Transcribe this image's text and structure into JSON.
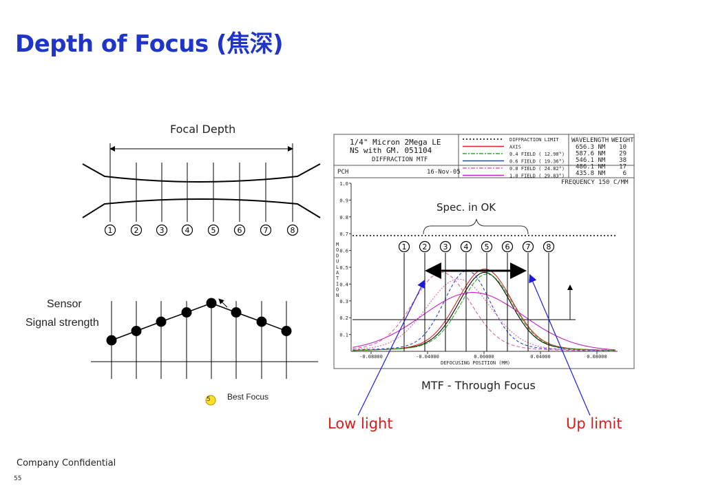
{
  "slide": {
    "title": "Depth of Focus (焦深)",
    "footer": "Company Confidential",
    "page_number": "55"
  },
  "left_diagram": {
    "focal_depth_label": "Focal Depth",
    "positions": [
      "1",
      "2",
      "3",
      "4",
      "5",
      "6",
      "7",
      "8"
    ],
    "sensor_label": "Sensor",
    "signal_label": "Signal strength",
    "best_focus_label": "Best Focus",
    "best_focus_marker": "5",
    "signal_values": [
      1,
      2,
      3,
      4,
      5,
      4,
      3,
      2
    ]
  },
  "mtf_panel": {
    "header_line1": "1/4\" Micron 2Mega LE",
    "header_line2": "NS with GM. 051104",
    "header_line3": "DIFFRACTION MTF",
    "footer_left": "PCH",
    "date": "16-Nov-05",
    "legend": [
      {
        "label": "DIFFRACTION LIMIT",
        "color": "#000000"
      },
      {
        "label": "AXIS",
        "color": "#e02020"
      },
      {
        "label": "0.4 FIELD ( 12.98°)",
        "color": "#20b020"
      },
      {
        "label": "0.6 FIELD ( 19.36°)",
        "color": "#2040e0"
      },
      {
        "label": "0.8 FIELD ( 24.82°)",
        "color": "#e060a0"
      },
      {
        "label": "1.0 FIELD ( 29.83°)",
        "color": "#c020c0"
      }
    ],
    "wavelength_header": "WAVELENGTH",
    "weight_header": "WEIGHT",
    "wavelengths": [
      {
        "wl": "656.3 NM",
        "w": "10"
      },
      {
        "wl": "587.6 NM",
        "w": "29"
      },
      {
        "wl": "546.1 NM",
        "w": "38"
      },
      {
        "wl": "486.1 NM",
        "w": "17"
      },
      {
        "wl": "435.8 NM",
        "w": "6"
      }
    ],
    "frequency": "FREQUENCY  150 C/MM",
    "y_ticks": [
      "1.0",
      "0.9",
      "0.8",
      "0.7",
      "0.6",
      "0.5",
      "0.4",
      "0.3",
      "0.2",
      "0.1"
    ],
    "y_axis_label": "MODULATION",
    "x_ticks": [
      "-0.08000",
      "-0.04000",
      "0.00000",
      "0.04000",
      "0.08000"
    ],
    "x_axis_label": "DEFOCUSING POSITION  (MM)",
    "spec_label": "Spec. in OK",
    "positions": [
      "1",
      "2",
      "3",
      "4",
      "5",
      "6",
      "7",
      "8"
    ],
    "caption": "MTF - Through Focus"
  },
  "annotations": {
    "low_light": "Low light",
    "up_limit": "Up limit"
  },
  "colors": {
    "title": "#1f35c8",
    "annotation": "#e01818",
    "arrow": "#1a1adf",
    "marker": "#ffe020"
  }
}
